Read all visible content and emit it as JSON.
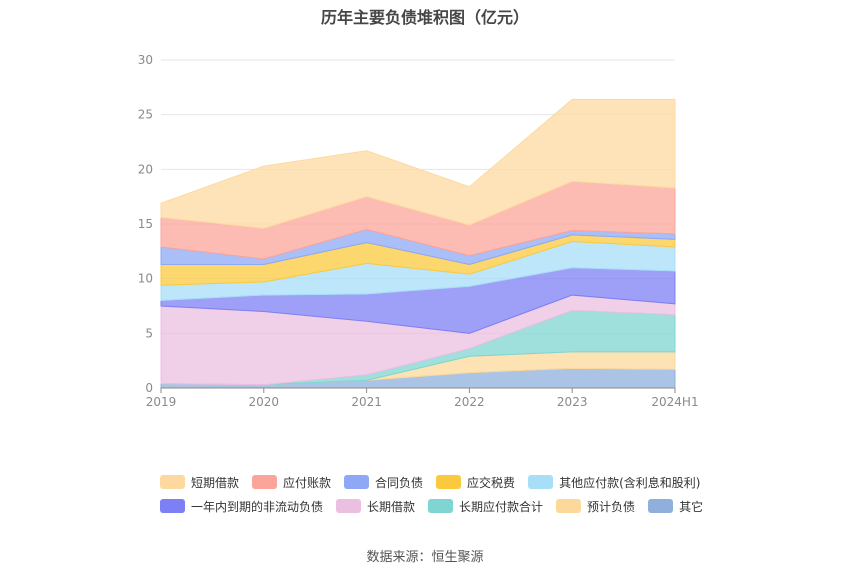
{
  "chart_data": {
    "type": "area",
    "stacked": true,
    "title": "历年主要负债堆积图（亿元）",
    "x": [
      "2019",
      "2020",
      "2021",
      "2022",
      "2023",
      "2024H1"
    ],
    "ylim": [
      0,
      30
    ],
    "yticks": [
      0,
      5,
      10,
      15,
      20,
      25,
      30
    ],
    "grid": true,
    "legend_position": "bottom",
    "series": [
      {
        "name": "其它",
        "color": "#8fb0dd",
        "values": [
          0.4,
          0.3,
          0.7,
          1.4,
          1.8,
          1.7
        ]
      },
      {
        "name": "预计负债",
        "color": "#fcd89a",
        "values": [
          0,
          0,
          0,
          1.5,
          1.5,
          1.6
        ]
      },
      {
        "name": "长期应付款合计",
        "color": "#7fd5d2",
        "values": [
          0,
          0,
          0.5,
          0.7,
          3.8,
          3.4
        ]
      },
      {
        "name": "长期借款",
        "color": "#ebbfe0",
        "values": [
          7.1,
          6.7,
          4.9,
          1.4,
          1.4,
          1.0
        ]
      },
      {
        "name": "一年内到期的非流动负债",
        "color": "#7d7ff4",
        "values": [
          0.5,
          1.5,
          2.5,
          4.3,
          2.5,
          3.0
        ]
      },
      {
        "name": "其他应付款(含利息和股利)",
        "color": "#a8def8",
        "values": [
          1.4,
          1.2,
          2.8,
          1.1,
          2.4,
          2.2
        ]
      },
      {
        "name": "应交税费",
        "color": "#fbc93d",
        "values": [
          1.9,
          1.6,
          1.9,
          0.9,
          0.6,
          0.7
        ]
      },
      {
        "name": "合同负债",
        "color": "#8ea8f6",
        "values": [
          1.6,
          0.5,
          1.2,
          0.8,
          0.4,
          0.5
        ]
      },
      {
        "name": "应付账款",
        "color": "#fba59a",
        "values": [
          2.7,
          2.8,
          3.0,
          2.8,
          4.5,
          4.2
        ]
      },
      {
        "name": "短期借款",
        "color": "#fdd9a0",
        "values": [
          1.3,
          5.7,
          4.2,
          3.5,
          7.5,
          8.1
        ]
      }
    ],
    "legend_order": [
      "短期借款",
      "应付账款",
      "合同负债",
      "应交税费",
      "其他应付款(含利息和股利)",
      "一年内到期的非流动负债",
      "长期借款",
      "长期应付款合计",
      "预计负债",
      "其它"
    ]
  },
  "footer": {
    "source": "数据来源：恒生聚源"
  }
}
